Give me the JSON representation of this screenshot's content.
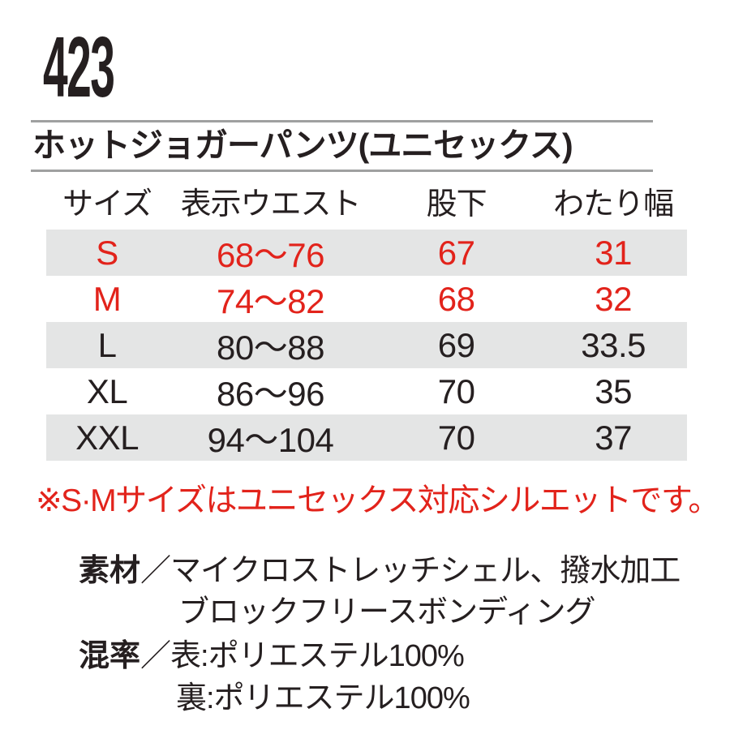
{
  "product": {
    "code": "423",
    "name": "ホットジョガーパンツ(ユニセックス)"
  },
  "size_table": {
    "headers": [
      "サイズ",
      "表示ウエスト",
      "股下",
      "わたり幅"
    ],
    "rows": [
      {
        "size": "S",
        "waist": "68〜76",
        "inseam": "67",
        "thigh_width": "31",
        "highlighted": true,
        "shaded": true
      },
      {
        "size": "M",
        "waist": "74〜82",
        "inseam": "68",
        "thigh_width": "32",
        "highlighted": true,
        "shaded": false
      },
      {
        "size": "L",
        "waist": "80〜88",
        "inseam": "69",
        "thigh_width": "33.5",
        "highlighted": false,
        "shaded": true
      },
      {
        "size": "XL",
        "waist": "86〜96",
        "inseam": "70",
        "thigh_width": "35",
        "highlighted": false,
        "shaded": false
      },
      {
        "size": "XXL",
        "waist": "94〜104",
        "inseam": "70",
        "thigh_width": "37",
        "highlighted": false,
        "shaded": true
      }
    ]
  },
  "note": "※S·Mサイズはユニセックス対応シルエットです。",
  "specs": {
    "material_label": "素材",
    "material_separator": "／",
    "material_line1": "マイクロストレッチシェル、撥水加工",
    "material_line2": "ブロックフリースボンディング",
    "blend_label": "混率",
    "blend_separator": "／",
    "blend_front": "表:ポリエステル100%",
    "blend_back": "裏:ポリエステル100%"
  },
  "colors": {
    "accent_red": "#e2231b",
    "row_shade_gray": "#e4e5e5",
    "text_black": "#251f20",
    "rule_gray": "#9fa0a0"
  }
}
